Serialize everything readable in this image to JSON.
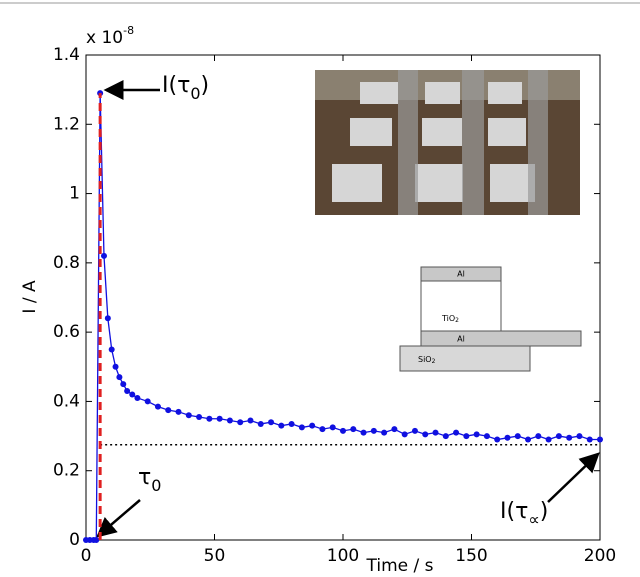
{
  "chart_data": {
    "type": "line",
    "y_multiplier": {
      "base": "x 10",
      "exponent": "-8"
    },
    "x_label": "Time / s",
    "y_label": "I / A",
    "xlim": [
      0,
      200
    ],
    "xticks": [
      0,
      50,
      100,
      150,
      200
    ],
    "ylim": [
      0,
      1.4
    ],
    "yticks": [
      0,
      0.2,
      0.4,
      0.6,
      0.8,
      1,
      1.2,
      1.4
    ],
    "x": [
      0,
      1.5,
      3,
      4,
      5.5,
      7,
      8.5,
      10,
      11.5,
      13,
      14.5,
      16,
      18,
      20,
      24,
      28,
      32,
      36,
      40,
      44,
      48,
      52,
      56,
      60,
      64,
      68,
      72,
      76,
      80,
      84,
      88,
      92,
      96,
      100,
      104,
      108,
      112,
      116,
      120,
      124,
      128,
      132,
      136,
      140,
      144,
      148,
      152,
      156,
      160,
      164,
      168,
      172,
      176,
      180,
      184,
      188,
      192,
      196,
      200
    ],
    "series": [
      {
        "color": "#1010e0",
        "values": [
          0,
          0,
          0,
          0,
          1.29,
          0.82,
          0.64,
          0.55,
          0.5,
          0.47,
          0.45,
          0.43,
          0.42,
          0.41,
          0.4,
          0.385,
          0.375,
          0.37,
          0.36,
          0.355,
          0.35,
          0.35,
          0.345,
          0.34,
          0.345,
          0.335,
          0.34,
          0.33,
          0.335,
          0.325,
          0.33,
          0.32,
          0.325,
          0.315,
          0.32,
          0.31,
          0.315,
          0.31,
          0.32,
          0.305,
          0.315,
          0.305,
          0.31,
          0.3,
          0.31,
          0.3,
          0.305,
          0.3,
          0.29,
          0.295,
          0.3,
          0.29,
          0.3,
          0.29,
          0.3,
          0.295,
          0.3,
          0.29,
          0.29
        ]
      }
    ],
    "tau0_line": {
      "x": 5.5,
      "top": 1.29,
      "color": "#e02020"
    },
    "baseline": {
      "y": 0.275,
      "from": 5.5
    },
    "annotations": {
      "peak": {
        "text": "I(τ",
        "sub": "0",
        "close": ")"
      },
      "tau0": {
        "text": "τ",
        "sub": "0"
      },
      "steady": {
        "text": "I(τ",
        "sub": "∝",
        "close": ")"
      }
    },
    "inset_labels": [
      "Al",
      "TiO",
      "2",
      "Al",
      "SiO",
      "2"
    ]
  }
}
